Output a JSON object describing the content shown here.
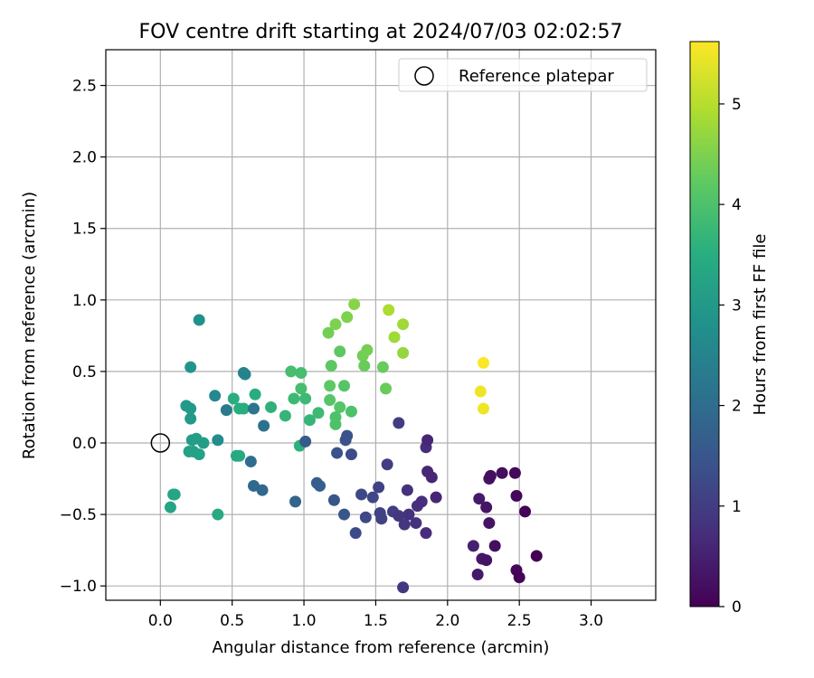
{
  "chart_data": {
    "type": "scatter",
    "title": "FOV centre drift starting at 2024/07/03 02:02:57",
    "xlabel": "Angular distance from reference (arcmin)",
    "ylabel": "Rotation from reference (arcmin)",
    "xlim": [
      -0.38,
      3.45
    ],
    "ylim": [
      -1.1,
      2.75
    ],
    "xticks": [
      0.0,
      0.5,
      1.0,
      1.5,
      2.0,
      2.5,
      3.0
    ],
    "xtick_labels": [
      "0.0",
      "0.5",
      "1.0",
      "1.5",
      "2.0",
      "2.5",
      "3.0"
    ],
    "yticks": [
      -1.0,
      -0.5,
      0.0,
      0.5,
      1.0,
      1.5,
      2.0,
      2.5
    ],
    "ytick_labels": [
      "−1.0",
      "−0.5",
      "0.0",
      "0.5",
      "1.0",
      "1.5",
      "2.0",
      "2.5"
    ],
    "grid": true,
    "legend": {
      "position": "top-right",
      "entries": [
        "Reference platepar"
      ]
    },
    "colormap": "viridis",
    "colorbar": {
      "label": "Hours from first FF file",
      "range": [
        0,
        5.62
      ],
      "ticks": [
        0,
        1,
        2,
        3,
        4,
        5
      ],
      "tick_labels": [
        "0",
        "1",
        "2",
        "3",
        "4",
        "5"
      ]
    },
    "reference_point": {
      "x": 0.0,
      "y": 0.0
    },
    "points": [
      {
        "x": 2.25,
        "y": 0.56,
        "h": 5.6
      },
      {
        "x": 2.23,
        "y": 0.36,
        "h": 5.5
      },
      {
        "x": 2.25,
        "y": 0.24,
        "h": 5.5
      },
      {
        "x": 1.59,
        "y": 0.93,
        "h": 4.9
      },
      {
        "x": 1.69,
        "y": 0.83,
        "h": 4.8
      },
      {
        "x": 1.63,
        "y": 0.74,
        "h": 4.8
      },
      {
        "x": 1.69,
        "y": 0.63,
        "h": 4.7
      },
      {
        "x": 1.35,
        "y": 0.97,
        "h": 4.6
      },
      {
        "x": 1.3,
        "y": 0.88,
        "h": 4.5
      },
      {
        "x": 1.22,
        "y": 0.83,
        "h": 4.5
      },
      {
        "x": 1.17,
        "y": 0.77,
        "h": 4.4
      },
      {
        "x": 1.44,
        "y": 0.65,
        "h": 4.4
      },
      {
        "x": 1.41,
        "y": 0.61,
        "h": 4.4
      },
      {
        "x": 1.42,
        "y": 0.54,
        "h": 4.3
      },
      {
        "x": 1.55,
        "y": 0.53,
        "h": 4.3
      },
      {
        "x": 1.57,
        "y": 0.38,
        "h": 4.3
      },
      {
        "x": 1.25,
        "y": 0.64,
        "h": 4.2
      },
      {
        "x": 1.19,
        "y": 0.54,
        "h": 4.2
      },
      {
        "x": 1.18,
        "y": 0.4,
        "h": 4.2
      },
      {
        "x": 1.28,
        "y": 0.4,
        "h": 4.1
      },
      {
        "x": 1.18,
        "y": 0.3,
        "h": 4.1
      },
      {
        "x": 1.25,
        "y": 0.25,
        "h": 4.1
      },
      {
        "x": 1.22,
        "y": 0.18,
        "h": 4.0
      },
      {
        "x": 1.22,
        "y": 0.13,
        "h": 4.0
      },
      {
        "x": 1.33,
        "y": 0.22,
        "h": 4.0
      },
      {
        "x": 0.91,
        "y": 0.5,
        "h": 3.9
      },
      {
        "x": 0.98,
        "y": 0.49,
        "h": 3.9
      },
      {
        "x": 0.98,
        "y": 0.38,
        "h": 3.9
      },
      {
        "x": 1.01,
        "y": 0.31,
        "h": 3.8
      },
      {
        "x": 0.93,
        "y": 0.31,
        "h": 3.8
      },
      {
        "x": 1.1,
        "y": 0.21,
        "h": 3.8
      },
      {
        "x": 1.04,
        "y": 0.16,
        "h": 3.7
      },
      {
        "x": 0.87,
        "y": 0.19,
        "h": 3.7
      },
      {
        "x": 0.97,
        "y": -0.02,
        "h": 3.6
      },
      {
        "x": 0.77,
        "y": 0.25,
        "h": 3.6
      },
      {
        "x": 0.66,
        "y": 0.34,
        "h": 3.5
      },
      {
        "x": 0.58,
        "y": 0.24,
        "h": 3.5
      },
      {
        "x": 0.55,
        "y": 0.24,
        "h": 3.5
      },
      {
        "x": 0.51,
        "y": 0.31,
        "h": 3.5
      },
      {
        "x": 0.53,
        "y": -0.09,
        "h": 3.4
      },
      {
        "x": 0.55,
        "y": -0.09,
        "h": 3.4
      },
      {
        "x": 0.4,
        "y": -0.5,
        "h": 3.4
      },
      {
        "x": 0.09,
        "y": -0.36,
        "h": 3.3
      },
      {
        "x": 0.1,
        "y": -0.36,
        "h": 3.3
      },
      {
        "x": 0.07,
        "y": -0.45,
        "h": 3.3
      },
      {
        "x": 0.2,
        "y": -0.06,
        "h": 3.2
      },
      {
        "x": 0.23,
        "y": -0.06,
        "h": 3.2
      },
      {
        "x": 0.27,
        "y": -0.08,
        "h": 3.2
      },
      {
        "x": 0.3,
        "y": 0.0,
        "h": 3.1
      },
      {
        "x": 0.25,
        "y": 0.03,
        "h": 3.1
      },
      {
        "x": 0.22,
        "y": 0.02,
        "h": 3.1
      },
      {
        "x": 0.21,
        "y": 0.17,
        "h": 3.0
      },
      {
        "x": 0.21,
        "y": 0.24,
        "h": 3.0
      },
      {
        "x": 0.18,
        "y": 0.26,
        "h": 3.0
      },
      {
        "x": 0.21,
        "y": 0.53,
        "h": 2.9
      },
      {
        "x": 0.27,
        "y": 0.86,
        "h": 2.8
      },
      {
        "x": 0.4,
        "y": 0.02,
        "h": 2.7
      },
      {
        "x": 0.38,
        "y": 0.33,
        "h": 2.6
      },
      {
        "x": 0.58,
        "y": 0.49,
        "h": 2.5
      },
      {
        "x": 0.59,
        "y": 0.48,
        "h": 2.5
      },
      {
        "x": 0.46,
        "y": 0.23,
        "h": 2.3
      },
      {
        "x": 0.65,
        "y": 0.24,
        "h": 2.2
      },
      {
        "x": 0.72,
        "y": 0.12,
        "h": 2.1
      },
      {
        "x": 0.63,
        "y": -0.13,
        "h": 2.0
      },
      {
        "x": 0.65,
        "y": -0.3,
        "h": 1.9
      },
      {
        "x": 0.71,
        "y": -0.33,
        "h": 1.9
      },
      {
        "x": 0.94,
        "y": -0.41,
        "h": 1.8
      },
      {
        "x": 1.09,
        "y": -0.28,
        "h": 1.7
      },
      {
        "x": 1.11,
        "y": -0.3,
        "h": 1.7
      },
      {
        "x": 1.01,
        "y": 0.01,
        "h": 1.6
      },
      {
        "x": 1.21,
        "y": -0.4,
        "h": 1.5
      },
      {
        "x": 1.28,
        "y": -0.5,
        "h": 1.5
      },
      {
        "x": 1.23,
        "y": -0.07,
        "h": 1.4
      },
      {
        "x": 1.29,
        "y": 0.02,
        "h": 1.4
      },
      {
        "x": 1.3,
        "y": 0.05,
        "h": 1.4
      },
      {
        "x": 1.33,
        "y": -0.08,
        "h": 1.3
      },
      {
        "x": 1.36,
        "y": -0.63,
        "h": 1.3
      },
      {
        "x": 1.4,
        "y": -0.36,
        "h": 1.2
      },
      {
        "x": 1.43,
        "y": -0.52,
        "h": 1.2
      },
      {
        "x": 1.48,
        "y": -0.38,
        "h": 1.2
      },
      {
        "x": 1.52,
        "y": -0.31,
        "h": 1.1
      },
      {
        "x": 1.53,
        "y": -0.49,
        "h": 1.1
      },
      {
        "x": 1.54,
        "y": -0.53,
        "h": 1.1
      },
      {
        "x": 1.58,
        "y": -0.15,
        "h": 1.0
      },
      {
        "x": 1.62,
        "y": -0.48,
        "h": 1.0
      },
      {
        "x": 1.66,
        "y": 0.14,
        "h": 1.0
      },
      {
        "x": 1.66,
        "y": -0.51,
        "h": 0.9
      },
      {
        "x": 1.7,
        "y": -0.57,
        "h": 0.9
      },
      {
        "x": 1.69,
        "y": -1.01,
        "h": 0.9
      },
      {
        "x": 1.72,
        "y": -0.33,
        "h": 0.8
      },
      {
        "x": 1.73,
        "y": -0.5,
        "h": 0.8
      },
      {
        "x": 1.78,
        "y": -0.56,
        "h": 0.8
      },
      {
        "x": 1.79,
        "y": -0.44,
        "h": 0.8
      },
      {
        "x": 1.82,
        "y": -0.41,
        "h": 0.7
      },
      {
        "x": 1.85,
        "y": -0.63,
        "h": 0.7
      },
      {
        "x": 1.85,
        "y": -0.03,
        "h": 0.7
      },
      {
        "x": 1.86,
        "y": 0.02,
        "h": 0.6
      },
      {
        "x": 1.86,
        "y": -0.2,
        "h": 0.6
      },
      {
        "x": 1.89,
        "y": -0.24,
        "h": 0.6
      },
      {
        "x": 1.92,
        "y": -0.38,
        "h": 0.6
      },
      {
        "x": 2.18,
        "y": -0.72,
        "h": 0.5
      },
      {
        "x": 2.21,
        "y": -0.92,
        "h": 0.4
      },
      {
        "x": 2.22,
        "y": -0.39,
        "h": 0.4
      },
      {
        "x": 2.24,
        "y": -0.81,
        "h": 0.4
      },
      {
        "x": 2.27,
        "y": -0.82,
        "h": 0.3
      },
      {
        "x": 2.27,
        "y": -0.45,
        "h": 0.3
      },
      {
        "x": 2.29,
        "y": -0.56,
        "h": 0.3
      },
      {
        "x": 2.29,
        "y": -0.25,
        "h": 0.3
      },
      {
        "x": 2.3,
        "y": -0.23,
        "h": 0.2
      },
      {
        "x": 2.33,
        "y": -0.72,
        "h": 0.2
      },
      {
        "x": 2.38,
        "y": -0.21,
        "h": 0.2
      },
      {
        "x": 2.47,
        "y": -0.21,
        "h": 0.1
      },
      {
        "x": 2.48,
        "y": -0.37,
        "h": 0.1
      },
      {
        "x": 2.48,
        "y": -0.89,
        "h": 0.1
      },
      {
        "x": 2.5,
        "y": -0.94,
        "h": 0.05
      },
      {
        "x": 2.54,
        "y": -0.48,
        "h": 0.05
      },
      {
        "x": 2.62,
        "y": -0.79,
        "h": 0.0
      }
    ]
  }
}
